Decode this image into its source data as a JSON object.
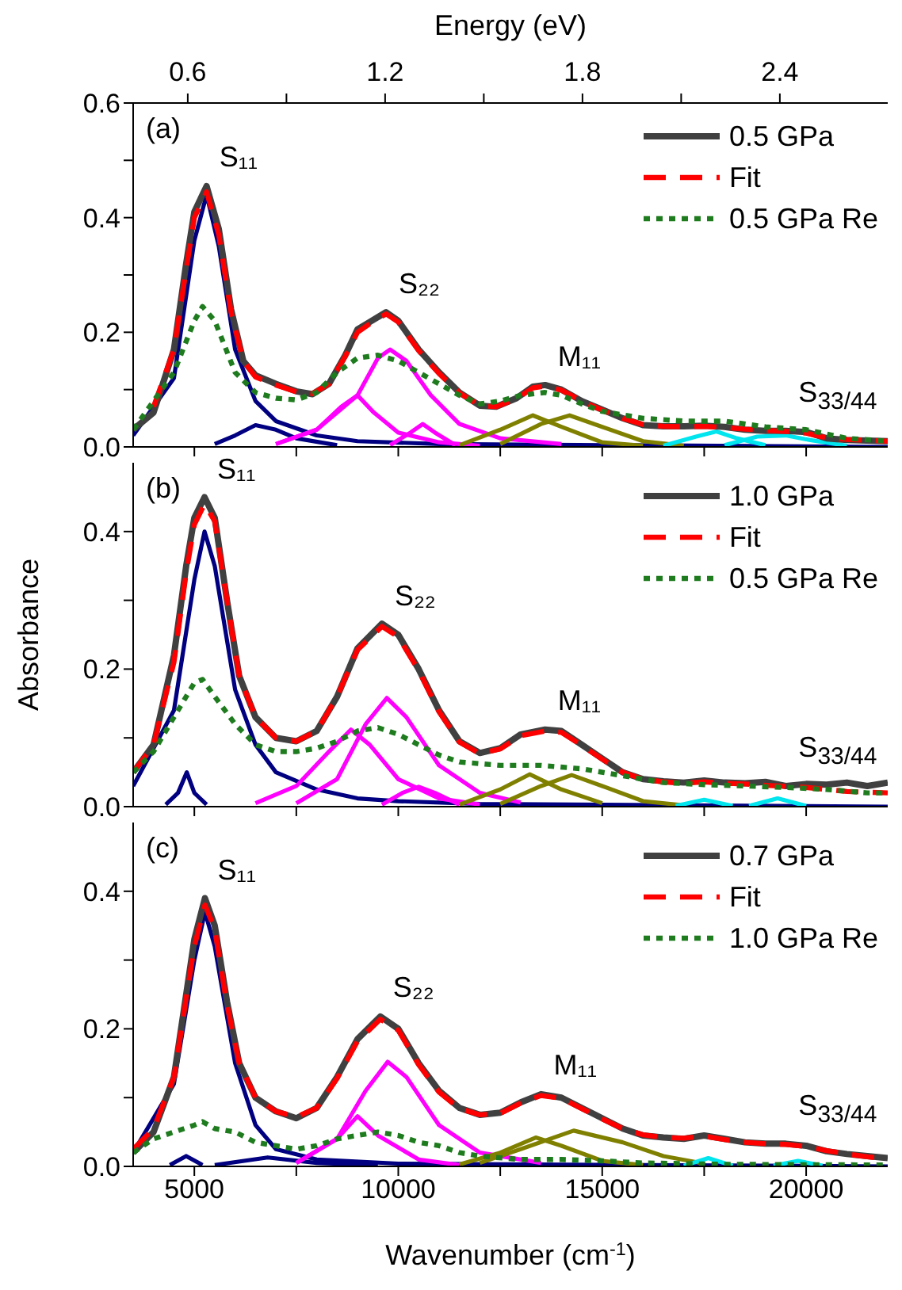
{
  "chart_data": [
    {
      "type": "line",
      "x2label": "Energy (eV)",
      "xlim": [
        3500,
        22000
      ],
      "xticks": [
        {
          "value": 5000,
          "label": null
        },
        {
          "value": 7500,
          "label": null
        },
        {
          "value": 10000,
          "label": null
        },
        {
          "value": 12500,
          "label": null
        },
        {
          "value": 15000,
          "label": null
        },
        {
          "value": 17500,
          "label": null
        },
        {
          "value": 20000,
          "label": null
        }
      ],
      "x2lim": [
        0.434,
        2.728
      ],
      "x2ticks": [
        0.6,
        {
          "value": 0.9,
          "label": null
        },
        1.2,
        {
          "value": 1.5,
          "label": null
        },
        1.8,
        {
          "value": 2.1,
          "label": null
        },
        2.4
      ],
      "ylim": [
        0,
        0.6
      ],
      "yticks": [
        {
          "value": 0,
          "label": "0.0"
        },
        {
          "value": 0.1,
          "label": null
        },
        0.2,
        {
          "value": 0.3,
          "label": null
        },
        0.4,
        {
          "value": 0.5,
          "label": null
        },
        0.6
      ],
      "tick_labels": "y",
      "legend": "top right",
      "annotations": [
        "(a)",
        {
          "text": "S₁₁",
          "x": 5300,
          "y": 0.455
        },
        {
          "text": "S₂₂",
          "x": 9700,
          "y": 0.235
        },
        {
          "text": "M₁₁",
          "x": 13600,
          "y": 0.108
        },
        {
          "text": "S$_{33/44}$",
          "x": 19500,
          "y": 0.028
        }
      ],
      "series": [
        {
          "name": "0.5 GPa",
          "color": "#404040",
          "line_style": "solid",
          "x": [
            3500,
            4000,
            4500,
            4800,
            5000,
            5300,
            5600,
            5900,
            6200,
            6500,
            7000,
            7500,
            7900,
            8300,
            8700,
            9000,
            9300,
            9700,
            10000,
            10500,
            11000,
            11500,
            12000,
            12400,
            12900,
            13300,
            13600,
            14000,
            14500,
            15000,
            15500,
            16000,
            16500,
            17000,
            17500,
            18000,
            18500,
            19000,
            19500,
            20000,
            20500,
            21000,
            22000
          ],
          "values": [
            0.03,
            0.06,
            0.17,
            0.32,
            0.41,
            0.455,
            0.38,
            0.24,
            0.15,
            0.125,
            0.11,
            0.097,
            0.092,
            0.11,
            0.16,
            0.205,
            0.218,
            0.235,
            0.22,
            0.17,
            0.13,
            0.095,
            0.072,
            0.07,
            0.085,
            0.105,
            0.108,
            0.1,
            0.08,
            0.065,
            0.05,
            0.038,
            0.036,
            0.036,
            0.037,
            0.035,
            0.03,
            0.028,
            0.028,
            0.026,
            0.015,
            0.012,
            0.01
          ]
        },
        {
          "name": "Fit",
          "color": "#ff0000",
          "line_style": "dashed",
          "x": [
            4000,
            4500,
            4800,
            5000,
            5300,
            5600,
            5900,
            6200,
            6500,
            7000,
            7500,
            7900,
            8300,
            8700,
            9000,
            9300,
            9700,
            10000,
            10500,
            11000,
            11500,
            12000,
            12400,
            12900,
            13300,
            13600,
            14000,
            14500,
            15000,
            15500,
            16000,
            16500,
            17000,
            17500,
            18000,
            18500,
            19000,
            19500,
            20000,
            20500,
            21000,
            22000
          ],
          "values": [
            0.07,
            0.17,
            0.31,
            0.4,
            0.445,
            0.37,
            0.235,
            0.15,
            0.122,
            0.108,
            0.096,
            0.093,
            0.11,
            0.158,
            0.2,
            0.215,
            0.232,
            0.218,
            0.168,
            0.128,
            0.094,
            0.072,
            0.07,
            0.084,
            0.103,
            0.106,
            0.099,
            0.08,
            0.064,
            0.05,
            0.039,
            0.036,
            0.035,
            0.036,
            0.034,
            0.031,
            0.029,
            0.027,
            0.024,
            0.016,
            0.013,
            0.01
          ]
        },
        {
          "name": "0.5 GPa Re",
          "color": "#1e7b1e",
          "line_style": "dotted",
          "x": [
            3500,
            4500,
            5000,
            5200,
            5500,
            6000,
            6500,
            7000,
            7500,
            8000,
            8500,
            9000,
            9500,
            10000,
            10500,
            11000,
            11500,
            12000,
            12500,
            13000,
            13600,
            14000,
            14500,
            15000,
            16000,
            17000,
            18000,
            19000,
            20000,
            21000,
            22000
          ],
          "values": [
            0.03,
            0.13,
            0.22,
            0.245,
            0.22,
            0.13,
            0.095,
            0.085,
            0.082,
            0.095,
            0.13,
            0.155,
            0.16,
            0.15,
            0.13,
            0.11,
            0.09,
            0.075,
            0.08,
            0.09,
            0.095,
            0.09,
            0.075,
            0.062,
            0.05,
            0.045,
            0.045,
            0.035,
            0.03,
            0.015,
            0.01
          ]
        },
        {
          "color": "#000080",
          "line_style": "solid",
          "x": [
            3500,
            4500,
            5000,
            5300,
            5600,
            6000,
            6500,
            7000,
            8000,
            9000,
            11000,
            22000
          ],
          "values": [
            0.02,
            0.12,
            0.36,
            0.44,
            0.35,
            0.17,
            0.08,
            0.045,
            0.02,
            0.01,
            0.005,
            0
          ]
        },
        {
          "color": "#000080",
          "line_style": "solid",
          "x": [
            5500,
            6000,
            6500,
            7000,
            7500,
            8500
          ],
          "values": [
            0.005,
            0.02,
            0.038,
            0.03,
            0.015,
            0.003
          ]
        },
        {
          "color": "#ff00ff",
          "line_style": "solid",
          "x": [
            7000,
            8000,
            8600,
            9000,
            9400,
            10000,
            11000,
            12000
          ],
          "values": [
            0.005,
            0.03,
            0.07,
            0.09,
            0.06,
            0.025,
            0.008,
            0.002
          ]
        },
        {
          "color": "#ff00ff",
          "line_style": "solid",
          "x": [
            7000,
            8000,
            9000,
            9500,
            9800,
            10200,
            10800,
            11500,
            12500,
            14000
          ],
          "values": [
            0.005,
            0.03,
            0.09,
            0.155,
            0.17,
            0.15,
            0.09,
            0.04,
            0.015,
            0.005
          ]
        },
        {
          "color": "#ff00ff",
          "line_style": "solid",
          "x": [
            9800,
            10300,
            10600,
            10900,
            11400
          ],
          "values": [
            0.003,
            0.025,
            0.04,
            0.025,
            0.003
          ]
        },
        {
          "color": "#808000",
          "line_style": "solid",
          "x": [
            11500,
            12500,
            13300,
            14000,
            15000,
            16000
          ],
          "values": [
            0.003,
            0.03,
            0.055,
            0.035,
            0.008,
            0.002
          ]
        },
        {
          "color": "#808000",
          "line_style": "solid",
          "x": [
            12500,
            13500,
            14200,
            15000,
            16000,
            17000
          ],
          "values": [
            0.005,
            0.04,
            0.055,
            0.035,
            0.01,
            0.002
          ]
        },
        {
          "color": "#00e5ee",
          "line_style": "solid",
          "x": [
            16500,
            17300,
            17800,
            18300,
            19000
          ],
          "values": [
            0.002,
            0.018,
            0.027,
            0.015,
            0.003
          ]
        },
        {
          "color": "#00e5ee",
          "line_style": "solid",
          "x": [
            18000,
            18800,
            19500,
            20100,
            21000
          ],
          "values": [
            0.003,
            0.018,
            0.02,
            0.012,
            0.002
          ]
        }
      ]
    },
    {
      "type": "line",
      "ylabel": "Absorbance",
      "xlim": [
        3500,
        22000
      ],
      "xticks": [
        {
          "value": 5000,
          "label": null
        },
        {
          "value": 7500,
          "label": null
        },
        {
          "value": 10000,
          "label": null
        },
        {
          "value": 12500,
          "label": null
        },
        {
          "value": 15000,
          "label": null
        },
        {
          "value": 17500,
          "label": null
        },
        {
          "value": 20000,
          "label": null
        }
      ],
      "ylim": [
        0,
        0.5
      ],
      "yticks": [
        {
          "value": 0,
          "label": "0.0"
        },
        {
          "value": 0.1,
          "label": null
        },
        0.2,
        {
          "value": 0.3,
          "label": null
        },
        0.4
      ],
      "tick_labels": "y",
      "legend": "top right",
      "annotations": [
        "(b)",
        {
          "text": "S₁₁",
          "x": 5250,
          "y": 0.45
        },
        {
          "text": "S₂₂",
          "x": 9600,
          "y": 0.266
        },
        {
          "text": "M₁₁",
          "x": 13600,
          "y": 0.112
        },
        {
          "text": "S$_{33/44}$",
          "x": 19500,
          "y": 0.03
        }
      ],
      "series": [
        {
          "name": "1.0 GPa",
          "color": "#404040",
          "line_style": "solid",
          "x": [
            3500,
            4000,
            4500,
            4800,
            5000,
            5250,
            5500,
            5800,
            6100,
            6500,
            7000,
            7500,
            8000,
            8500,
            9000,
            9600,
            10000,
            10500,
            11000,
            11500,
            12000,
            12500,
            13000,
            13600,
            14000,
            14500,
            15000,
            15500,
            16000,
            16500,
            17000,
            17500,
            18000,
            18500,
            19000,
            19500,
            20000,
            20500,
            21000,
            21500,
            22000
          ],
          "values": [
            0.05,
            0.09,
            0.22,
            0.35,
            0.42,
            0.45,
            0.42,
            0.3,
            0.19,
            0.13,
            0.1,
            0.095,
            0.11,
            0.16,
            0.23,
            0.266,
            0.25,
            0.2,
            0.14,
            0.095,
            0.078,
            0.085,
            0.105,
            0.112,
            0.11,
            0.09,
            0.07,
            0.05,
            0.04,
            0.037,
            0.035,
            0.038,
            0.035,
            0.034,
            0.036,
            0.03,
            0.033,
            0.032,
            0.035,
            0.03,
            0.035
          ]
        },
        {
          "name": "Fit",
          "color": "#ff0000",
          "line_style": "dashed",
          "x": [
            3500,
            4000,
            4500,
            4800,
            5000,
            5250,
            5500,
            5800,
            6100,
            6500,
            7000,
            7500,
            8000,
            8500,
            9000,
            9600,
            10000,
            10500,
            11000,
            11500,
            12000,
            12500,
            13000,
            13600,
            14000,
            14500,
            15000,
            15500,
            16000,
            16500,
            17000,
            17500,
            18000,
            18500,
            19000,
            20000,
            21000,
            22000
          ],
          "values": [
            0.05,
            0.09,
            0.21,
            0.34,
            0.41,
            0.44,
            0.415,
            0.3,
            0.19,
            0.13,
            0.1,
            0.095,
            0.11,
            0.16,
            0.228,
            0.262,
            0.247,
            0.198,
            0.138,
            0.094,
            0.077,
            0.084,
            0.103,
            0.11,
            0.108,
            0.089,
            0.069,
            0.05,
            0.04,
            0.036,
            0.034,
            0.036,
            0.034,
            0.033,
            0.031,
            0.028,
            0.022,
            0.02
          ]
        },
        {
          "name": "0.5 GPa Re",
          "color": "#1e7b1e",
          "line_style": "dotted",
          "x": [
            3500,
            4000,
            4500,
            5000,
            5200,
            5500,
            6000,
            6500,
            7000,
            7500,
            8000,
            8500,
            9000,
            9500,
            10000,
            10500,
            11000,
            11500,
            12500,
            13500,
            14500,
            15500,
            16500,
            17500,
            18500,
            19500,
            20500,
            21500,
            22000
          ],
          "values": [
            0.05,
            0.08,
            0.13,
            0.18,
            0.185,
            0.16,
            0.12,
            0.09,
            0.08,
            0.08,
            0.085,
            0.095,
            0.11,
            0.115,
            0.105,
            0.09,
            0.075,
            0.065,
            0.06,
            0.06,
            0.055,
            0.045,
            0.035,
            0.032,
            0.03,
            0.028,
            0.025,
            0.02,
            0.02
          ]
        },
        {
          "color": "#000080",
          "line_style": "solid",
          "x": [
            3500,
            4500,
            5000,
            5250,
            5500,
            6000,
            6500,
            7000,
            8000,
            9000,
            10000,
            12000,
            22000
          ],
          "values": [
            0.03,
            0.14,
            0.33,
            0.4,
            0.35,
            0.17,
            0.09,
            0.05,
            0.025,
            0.012,
            0.008,
            0.004,
            0
          ]
        },
        {
          "color": "#000080",
          "line_style": "solid",
          "x": [
            4300,
            4600,
            4815,
            5000,
            5300
          ],
          "values": [
            0.003,
            0.02,
            0.05,
            0.02,
            0.003
          ]
        },
        {
          "color": "#ff00ff",
          "line_style": "solid",
          "x": [
            6500,
            7500,
            8300,
            8840,
            9300,
            10000,
            11000,
            12000
          ],
          "values": [
            0.005,
            0.03,
            0.08,
            0.112,
            0.09,
            0.04,
            0.012,
            0.003
          ]
        },
        {
          "color": "#ff00ff",
          "line_style": "solid",
          "x": [
            7500,
            8500,
            9200,
            9720,
            10200,
            11000,
            12000,
            13000
          ],
          "values": [
            0.005,
            0.04,
            0.12,
            0.158,
            0.13,
            0.06,
            0.02,
            0.006
          ]
        },
        {
          "color": "#ff00ff",
          "line_style": "solid",
          "x": [
            9600,
            10100,
            10500,
            10900,
            11500
          ],
          "values": [
            0.003,
            0.02,
            0.029,
            0.02,
            0.003
          ]
        },
        {
          "color": "#808000",
          "line_style": "solid",
          "x": [
            11500,
            12500,
            13220,
            14000,
            15000
          ],
          "values": [
            0.003,
            0.025,
            0.047,
            0.025,
            0.005
          ]
        },
        {
          "color": "#808000",
          "line_style": "solid",
          "x": [
            12500,
            13500,
            14250,
            15000,
            16000,
            17000
          ],
          "values": [
            0.004,
            0.03,
            0.046,
            0.03,
            0.008,
            0.002
          ]
        },
        {
          "color": "#00e5ee",
          "line_style": "solid",
          "x": [
            16800,
            17500,
            18200
          ],
          "values": [
            0.001,
            0.01,
            0.001
          ]
        },
        {
          "color": "#00e5ee",
          "line_style": "solid",
          "x": [
            18600,
            19300,
            20000
          ],
          "values": [
            0.001,
            0.012,
            0.001
          ]
        }
      ]
    },
    {
      "type": "line",
      "xlabel": "Wavenumber (cm$^{-1}$)",
      "xlim": [
        3500,
        22000
      ],
      "xticks": [
        {
          "value": 5000,
          "label": "5000"
        },
        {
          "value": 7500,
          "label": null
        },
        {
          "value": 10000,
          "label": "10000"
        },
        {
          "value": 12500,
          "label": null
        },
        {
          "value": 15000,
          "label": "15000"
        },
        {
          "value": 17500,
          "label": null
        },
        {
          "value": 20000,
          "label": "20000"
        }
      ],
      "ylim": [
        0,
        0.5
      ],
      "yticks": [
        {
          "value": 0,
          "label": "0.0"
        },
        {
          "value": 0.1,
          "label": null
        },
        0.2,
        {
          "value": 0.3,
          "label": null
        },
        0.4
      ],
      "legend": "top right",
      "annotations": [
        "(c)",
        {
          "text": "S₁₁",
          "x": 5260,
          "y": 0.39
        },
        {
          "text": "S₂₂",
          "x": 9560,
          "y": 0.218
        },
        {
          "text": "M₁₁",
          "x": 13500,
          "y": 0.105
        },
        {
          "text": "S$_{33/44}$",
          "x": 19500,
          "y": 0.033
        }
      ],
      "series": [
        {
          "name": "0.7 GPa",
          "color": "#404040",
          "line_style": "solid",
          "x": [
            3500,
            4000,
            4500,
            4800,
            5000,
            5260,
            5500,
            5800,
            6100,
            6500,
            7000,
            7500,
            8000,
            8500,
            9000,
            9560,
            10000,
            10500,
            11000,
            11500,
            12000,
            12500,
            13000,
            13500,
            14000,
            14500,
            15000,
            15500,
            16000,
            16500,
            17000,
            17500,
            18000,
            18500,
            19000,
            19500,
            20000,
            20500,
            21000,
            21500,
            22000
          ],
          "values": [
            0.02,
            0.05,
            0.13,
            0.25,
            0.33,
            0.39,
            0.35,
            0.24,
            0.15,
            0.1,
            0.08,
            0.07,
            0.085,
            0.13,
            0.185,
            0.218,
            0.2,
            0.15,
            0.11,
            0.085,
            0.075,
            0.078,
            0.093,
            0.105,
            0.1,
            0.085,
            0.07,
            0.055,
            0.045,
            0.042,
            0.04,
            0.045,
            0.04,
            0.035,
            0.033,
            0.033,
            0.03,
            0.022,
            0.018,
            0.015,
            0.012
          ]
        },
        {
          "name": "Fit",
          "color": "#ff0000",
          "line_style": "dashed",
          "x": [
            3500,
            4000,
            4500,
            4800,
            5000,
            5260,
            5500,
            5800,
            6100,
            6500,
            7000,
            7500,
            8000,
            8500,
            9000,
            9560,
            10000,
            10500,
            11000,
            11500,
            12000,
            12500,
            13000,
            13500,
            14000,
            14500,
            15000,
            15500,
            16000,
            16500,
            17000,
            17500,
            18000,
            18500,
            19000,
            19500,
            20000,
            20500,
            21000,
            21500,
            22000
          ],
          "values": [
            0.025,
            0.055,
            0.13,
            0.245,
            0.32,
            0.38,
            0.345,
            0.235,
            0.15,
            0.1,
            0.08,
            0.072,
            0.085,
            0.128,
            0.182,
            0.214,
            0.198,
            0.148,
            0.108,
            0.084,
            0.075,
            0.077,
            0.092,
            0.103,
            0.099,
            0.084,
            0.069,
            0.055,
            0.046,
            0.042,
            0.041,
            0.044,
            0.039,
            0.035,
            0.033,
            0.032,
            0.029,
            0.023,
            0.018,
            0.014,
            0.011
          ]
        },
        {
          "name": "1.0 GPa Re",
          "color": "#1e7b1e",
          "line_style": "dotted",
          "x": [
            3500,
            4000,
            4500,
            5000,
            5200,
            5500,
            6000,
            6500,
            7000,
            7500,
            8000,
            8500,
            9000,
            9500,
            10000,
            10500,
            11000,
            11500,
            12000,
            13000,
            14000,
            15000,
            16000,
            18000,
            22000
          ],
          "values": [
            0.02,
            0.04,
            0.05,
            0.06,
            0.065,
            0.055,
            0.05,
            0.035,
            0.03,
            0.025,
            0.03,
            0.04,
            0.045,
            0.05,
            0.045,
            0.035,
            0.03,
            0.02,
            0.015,
            0.01,
            0.01,
            0.008,
            0.005,
            0.003,
            0.002
          ]
        },
        {
          "color": "#000080",
          "line_style": "solid",
          "x": [
            3500,
            4500,
            5000,
            5260,
            5500,
            6000,
            6500,
            7000,
            8000,
            10000,
            22000
          ],
          "values": [
            0.02,
            0.12,
            0.3,
            0.37,
            0.32,
            0.15,
            0.06,
            0.025,
            0.01,
            0.004,
            0
          ]
        },
        {
          "color": "#000080",
          "line_style": "solid",
          "x": [
            4400,
            4800,
            5200
          ],
          "values": [
            0.002,
            0.015,
            0.002
          ]
        },
        {
          "color": "#000080",
          "line_style": "solid",
          "x": [
            5500,
            6800,
            8000,
            9500
          ],
          "values": [
            0.002,
            0.013,
            0.005,
            0.002
          ]
        },
        {
          "color": "#ff00ff",
          "line_style": "solid",
          "x": [
            7500,
            8500,
            9000,
            9500,
            10500,
            11500
          ],
          "values": [
            0.005,
            0.04,
            0.073,
            0.045,
            0.01,
            0.002
          ]
        },
        {
          "color": "#ff00ff",
          "line_style": "solid",
          "x": [
            7500,
            8500,
            9200,
            9740,
            10200,
            11000,
            12000,
            13500
          ],
          "values": [
            0.005,
            0.04,
            0.11,
            0.152,
            0.13,
            0.06,
            0.02,
            0.005
          ]
        },
        {
          "color": "#808000",
          "line_style": "solid",
          "x": [
            11500,
            12500,
            13370,
            14000,
            15000,
            16000
          ],
          "values": [
            0.003,
            0.02,
            0.042,
            0.03,
            0.008,
            0.002
          ]
        },
        {
          "color": "#808000",
          "line_style": "solid",
          "x": [
            12000,
            13000,
            14300,
            15500,
            16500,
            17500
          ],
          "values": [
            0.005,
            0.025,
            0.052,
            0.035,
            0.015,
            0.004
          ]
        },
        {
          "color": "#00e5ee",
          "line_style": "solid",
          "x": [
            17000,
            17600,
            18200
          ],
          "values": [
            0.001,
            0.012,
            0.001
          ]
        },
        {
          "color": "#00e5ee",
          "line_style": "solid",
          "x": [
            19200,
            19800,
            20400
          ],
          "values": [
            0.001,
            0.008,
            0.001
          ]
        }
      ]
    }
  ]
}
